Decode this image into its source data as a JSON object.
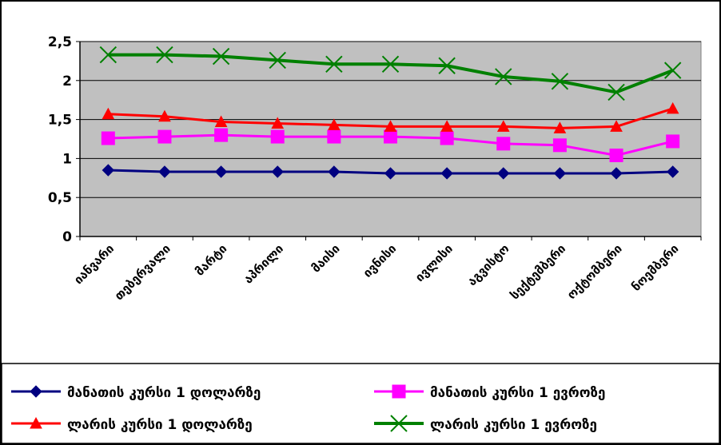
{
  "chart_data": {
    "type": "line",
    "title": "",
    "xlabel": "",
    "ylabel": "",
    "ylim": [
      0,
      2.5
    ],
    "yticks": [
      "0",
      "0,5",
      "1",
      "1,5",
      "2",
      "2,5"
    ],
    "categories": [
      "იანვარი",
      "თებერვალი",
      "მარტი",
      "აპრილი",
      "მაისი",
      "ივნისი",
      "ივლისი",
      "აგვისტო",
      "სექტემბერი",
      "ოქტომბერი",
      "ნოემბერი"
    ],
    "grid": "horizontal",
    "legend_position": "bottom",
    "series": [
      {
        "name": "მანათის კურსი 1 დოლარზე",
        "color": "#000080",
        "marker": "diamond",
        "values": [
          0.85,
          0.83,
          0.83,
          0.83,
          0.83,
          0.81,
          0.81,
          0.81,
          0.81,
          0.81,
          0.83
        ]
      },
      {
        "name": "მანათის კურსი 1 ევროზე",
        "color": "#ff00ff",
        "marker": "square",
        "values": [
          1.26,
          1.28,
          1.3,
          1.28,
          1.28,
          1.28,
          1.26,
          1.19,
          1.17,
          1.04,
          1.22
        ]
      },
      {
        "name": "ლარის კურსი 1 დოლარზე",
        "color": "#ff0000",
        "marker": "triangle",
        "values": [
          1.57,
          1.54,
          1.47,
          1.45,
          1.43,
          1.41,
          1.41,
          1.41,
          1.39,
          1.41,
          1.64
        ]
      },
      {
        "name": "ლარის კურსი 1 ევროზე",
        "color": "#008000",
        "marker": "x",
        "values": [
          2.33,
          2.33,
          2.31,
          2.26,
          2.21,
          2.21,
          2.19,
          2.05,
          1.99,
          1.85,
          2.13
        ]
      }
    ]
  }
}
